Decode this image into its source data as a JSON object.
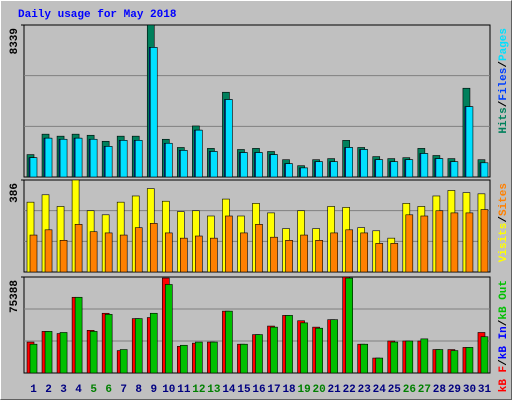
{
  "chart_data": [
    {
      "type": "bar",
      "title": "Daily usage for May 2018",
      "legend_separator": "/",
      "ylim": [
        0,
        8339
      ],
      "yticks": [
        8339
      ],
      "series": [
        {
          "name": "Hits",
          "color": "#00805C",
          "values": [
            1230,
            2350,
            2240,
            2350,
            2290,
            1960,
            2240,
            2240,
            8339,
            2070,
            1620,
            2800,
            1570,
            4650,
            1510,
            1570,
            1400,
            950,
            620,
            950,
            1010,
            2010,
            1620,
            1120,
            1010,
            1060,
            1570,
            1180,
            1010,
            4870,
            950
          ]
        },
        {
          "name": "Files",
          "color": "#0040FF",
          "values": [
            1060,
            2130,
            2070,
            2130,
            2070,
            1680,
            2010,
            2010,
            7110,
            1850,
            1460,
            2570,
            1400,
            4250,
            1340,
            1340,
            1230,
            730,
            500,
            840,
            840,
            1620,
            1510,
            950,
            840,
            950,
            1290,
            1010,
            840,
            3860,
            780
          ]
        },
        {
          "name": "Pages",
          "color": "#00E0FF",
          "values": [
            1060,
            2130,
            2070,
            2130,
            2070,
            1680,
            2010,
            2010,
            7110,
            1850,
            1460,
            2570,
            1400,
            4250,
            1340,
            1340,
            1230,
            730,
            500,
            840,
            840,
            1620,
            1510,
            950,
            840,
            950,
            1290,
            1010,
            840,
            3860,
            780
          ]
        }
      ]
    },
    {
      "type": "bar",
      "ylim": [
        0,
        386
      ],
      "yticks": [
        386
      ],
      "series": [
        {
          "name": "Visits",
          "color": "#FFFF00",
          "values": [
            293,
            324,
            275,
            386,
            257,
            240,
            293,
            319,
            350,
            297,
            253,
            257,
            235,
            306,
            235,
            288,
            248,
            182,
            257,
            182,
            275,
            271,
            186,
            173,
            142,
            288,
            275,
            319,
            342,
            333,
            328
          ]
        },
        {
          "name": "Sites",
          "color": "#FF8000",
          "values": [
            155,
            177,
            133,
            200,
            169,
            164,
            155,
            186,
            204,
            164,
            142,
            151,
            142,
            235,
            164,
            200,
            146,
            133,
            155,
            133,
            164,
            177,
            164,
            120,
            120,
            240,
            235,
            257,
            248,
            248,
            262
          ]
        }
      ]
    },
    {
      "type": "bar",
      "ylim": [
        0,
        75388
      ],
      "yticks": [
        75388
      ],
      "categories": [
        "1",
        "2",
        "3",
        "4",
        "5",
        "6",
        "7",
        "8",
        "9",
        "10",
        "11",
        "12",
        "13",
        "14",
        "15",
        "16",
        "17",
        "18",
        "19",
        "20",
        "21",
        "22",
        "23",
        "24",
        "25",
        "26",
        "27",
        "28",
        "29",
        "30",
        "31"
      ],
      "category_colors": [
        "#000080",
        "#000080",
        "#000080",
        "#000080",
        "#008000",
        "#008000",
        "#000080",
        "#000080",
        "#000080",
        "#000080",
        "#000080",
        "#008000",
        "#008000",
        "#000080",
        "#000080",
        "#000080",
        "#000080",
        "#000080",
        "#008000",
        "#008000",
        "#000080",
        "#000080",
        "#000080",
        "#000080",
        "#000080",
        "#008000",
        "#008000",
        "#000080",
        "#000080",
        "#000080",
        "#000080"
      ],
      "series": [
        {
          "name": "kB F",
          "color": "#FF0000",
          "values": [
            24290,
            32670,
            30990,
            59470,
            33510,
            46910,
            17590,
            42720,
            43560,
            74550,
            20940,
            23450,
            24290,
            48580,
            22620,
            30160,
            36860,
            45230,
            41040,
            36020,
            41880,
            75388,
            22620,
            11730,
            25130,
            25130,
            25130,
            18430,
            18430,
            20100,
            31830
          ]
        },
        {
          "name": "kB In",
          "color": "#0000FF",
          "values": [
            null,
            null,
            null,
            null,
            null,
            null,
            null,
            null,
            null,
            null,
            null,
            null,
            null,
            null,
            null,
            null,
            null,
            null,
            null,
            null,
            null,
            null,
            null,
            null,
            null,
            null,
            null,
            null,
            null,
            null,
            null
          ]
        },
        {
          "name": "kB Out",
          "color": "#00C000",
          "values": [
            22620,
            32670,
            31830,
            59470,
            32670,
            46070,
            18430,
            42720,
            46910,
            69520,
            21780,
            24290,
            24290,
            48580,
            22620,
            30160,
            36020,
            45230,
            39370,
            35180,
            41880,
            74550,
            22620,
            11730,
            24290,
            25130,
            26800,
            18430,
            17590,
            20100,
            28480
          ]
        }
      ]
    }
  ]
}
